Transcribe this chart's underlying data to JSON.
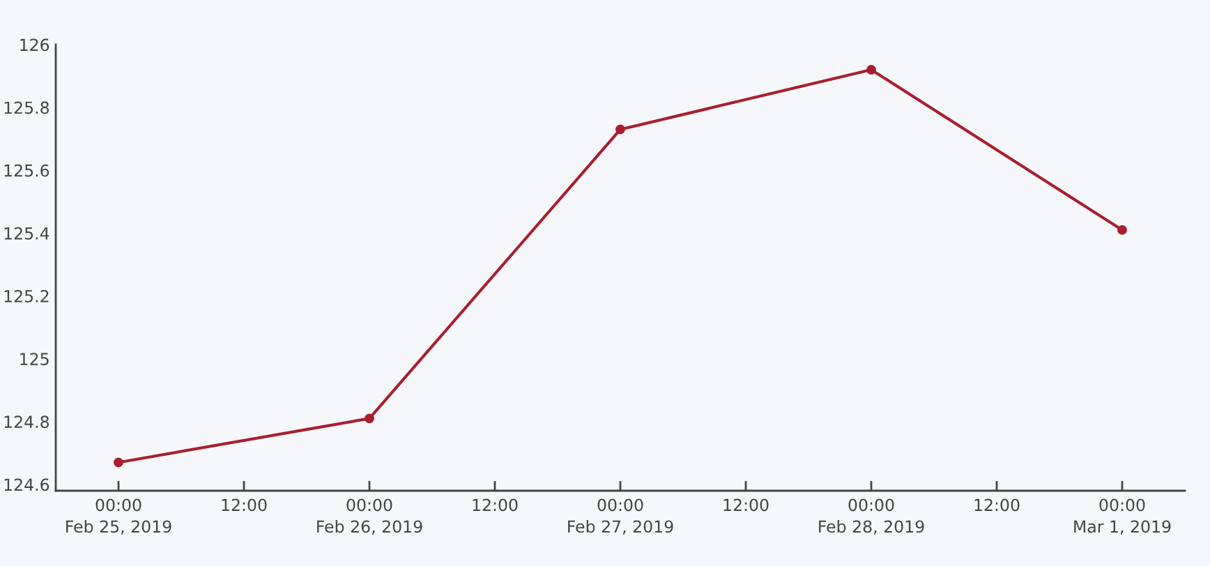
{
  "chart_data": {
    "type": "line",
    "x": [
      "2019-02-25",
      "2019-02-26",
      "2019-02-27",
      "2019-02-28",
      "2019-03-01"
    ],
    "series": [
      {
        "color": "#a81f2f",
        "values": [
          124.67,
          124.81,
          125.73,
          125.92,
          125.41
        ]
      }
    ],
    "xlim": [
      "2019-02-24T18:00",
      "2019-03-01T06:00"
    ],
    "xticks": [
      {
        "value": "2019-02-25T00:00",
        "label": "00:00\nFeb 25, 2019"
      },
      {
        "value": "2019-02-25T12:00",
        "label": "12:00"
      },
      {
        "value": "2019-02-26T00:00",
        "label": "00:00\nFeb 26, 2019"
      },
      {
        "value": "2019-02-26T12:00",
        "label": "12:00"
      },
      {
        "value": "2019-02-27T00:00",
        "label": "00:00\nFeb 27, 2019"
      },
      {
        "value": "2019-02-27T12:00",
        "label": "12:00"
      },
      {
        "value": "2019-02-28T00:00",
        "label": "00:00\nFeb 28, 2019"
      },
      {
        "value": "2019-02-28T12:00",
        "label": "12:00"
      },
      {
        "value": "2019-03-01T00:00",
        "label": "00:00\nMar 1, 2019"
      }
    ],
    "ylim": [
      124.58,
      126.0
    ],
    "yticks": [
      126,
      125.8,
      125.6,
      125.4,
      125.2,
      125,
      124.8,
      124.6
    ],
    "marker": "circle",
    "line_style": "solid"
  }
}
